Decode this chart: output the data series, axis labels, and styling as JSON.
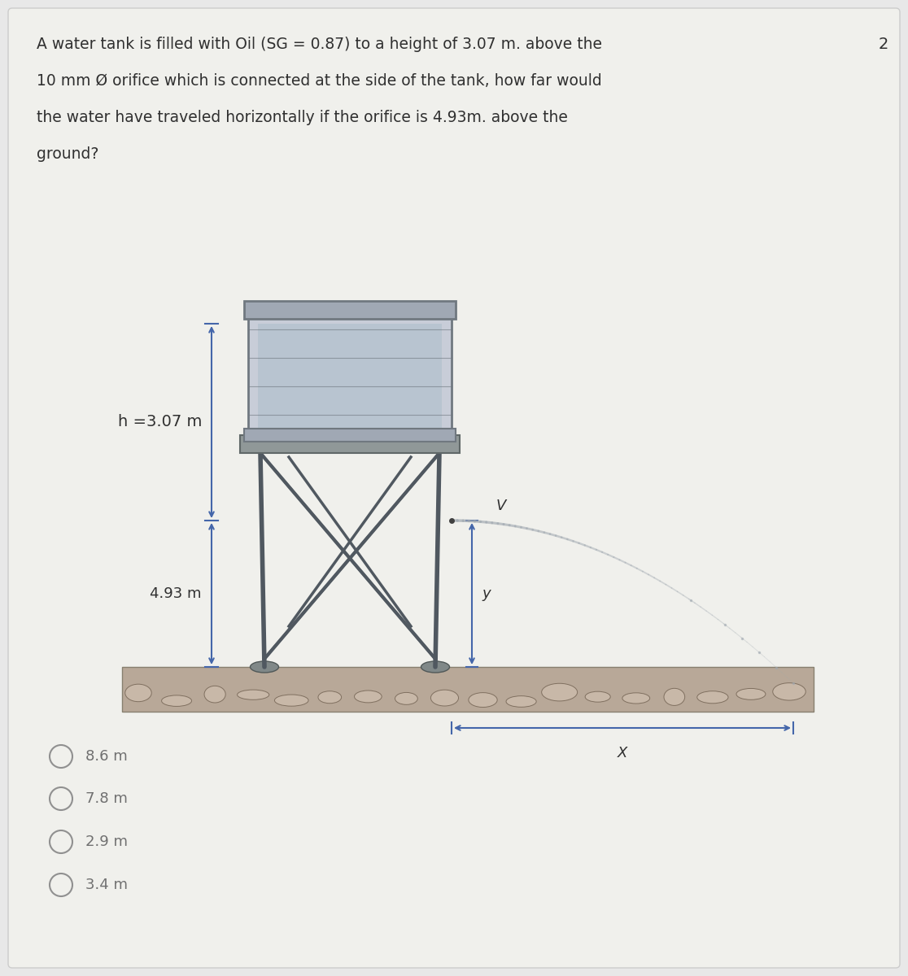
{
  "bg_color": "#e8e8e8",
  "card_color": "#f0f0ec",
  "title_text": "A water tank is filled with Oil (SG = 0.87) to a height of 3.07 m. above the\n10 mm Ø orifice which is connected at the side of the tank, how far would\nthe water have traveled horizontally if the orifice is 4.93m. above the\nground?",
  "number_label": "2",
  "h_label": "h =3.07 m",
  "h493_label": "4.93 m",
  "V_label": "V",
  "y_label": "y",
  "X_label": "X",
  "choices": [
    "8.6 m",
    "7.8 m",
    "2.9 m",
    "3.4 m"
  ],
  "tank_color": "#b0b8c8",
  "tank_dark": "#707880",
  "structure_color": "#505860",
  "ground_color": "#a09080",
  "arrow_color": "#4466aa",
  "jet_color": "#a0a8b0",
  "text_color": "#303030",
  "choice_circle_color": "#909090"
}
